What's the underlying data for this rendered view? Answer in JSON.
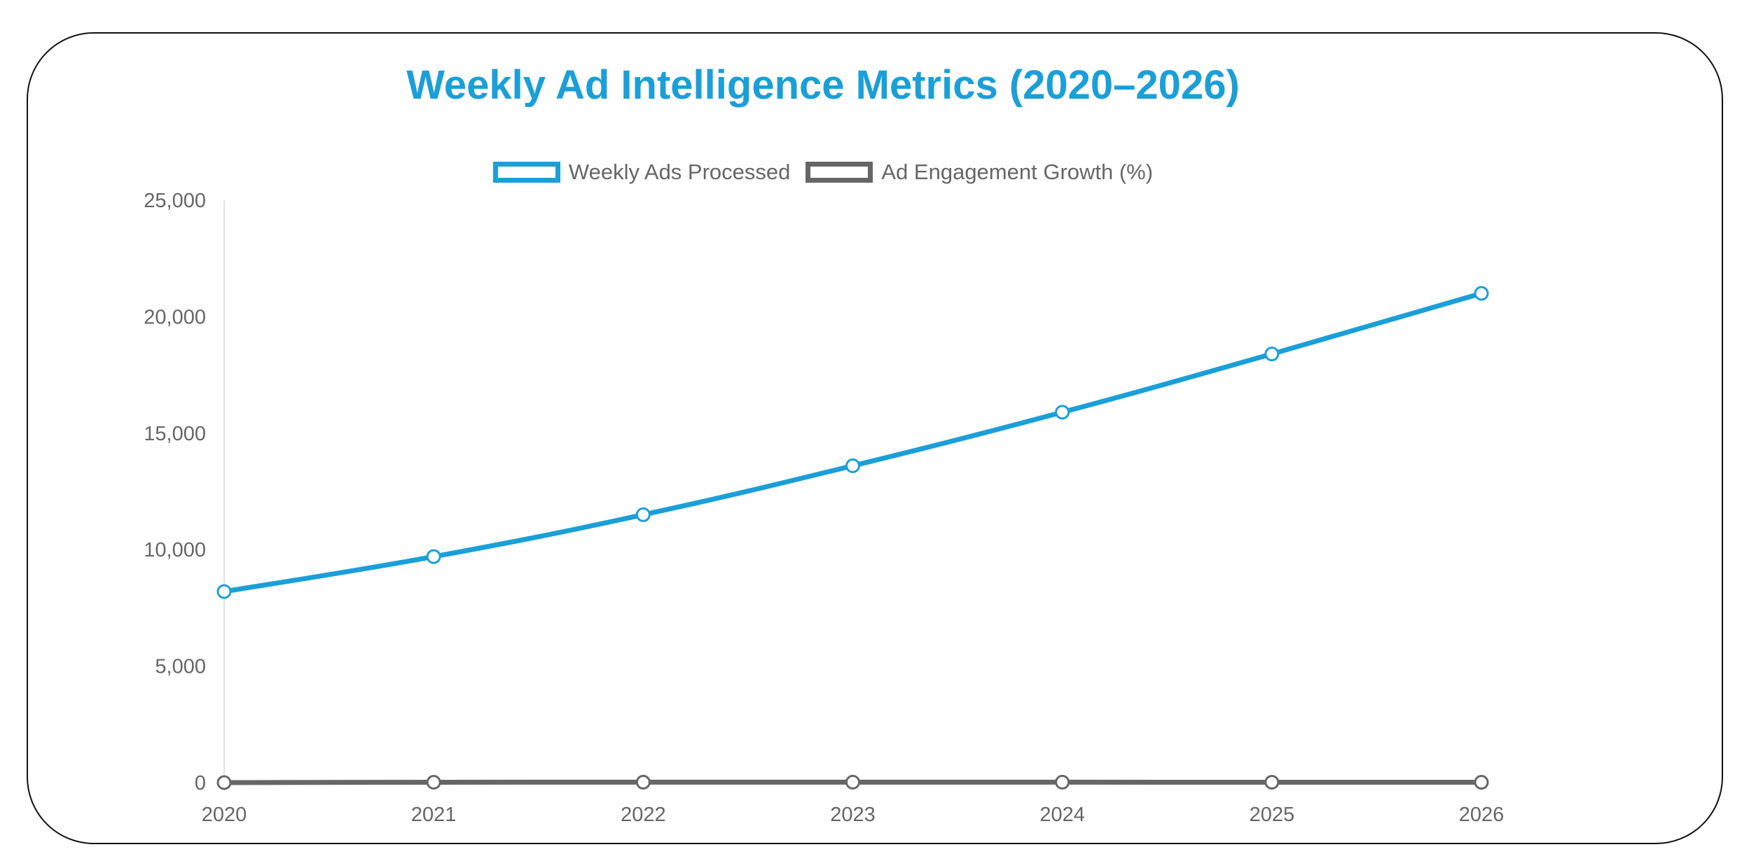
{
  "chart_data": {
    "type": "line",
    "title": "Weekly Ad Intelligence Metrics (2020–2026)",
    "xlabel": "",
    "ylabel": "",
    "categories": [
      "2020",
      "2021",
      "2022",
      "2023",
      "2024",
      "2025",
      "2026"
    ],
    "ylim": [
      0,
      25000
    ],
    "yticks": [
      0,
      5000,
      10000,
      15000,
      20000,
      25000
    ],
    "ytick_labels": [
      "0",
      "5,000",
      "10,000",
      "15,000",
      "20,000",
      "25,000"
    ],
    "grid": false,
    "legend_position": "top-center",
    "series": [
      {
        "name": "Weekly Ads Processed",
        "color": "#1a9fd8",
        "values": [
          8200,
          9700,
          11500,
          13600,
          15900,
          18400,
          21000
        ]
      },
      {
        "name": "Ad Engagement Growth (%)",
        "color": "#666666",
        "values": [
          0,
          15,
          18,
          18,
          17,
          16,
          14
        ]
      }
    ]
  }
}
